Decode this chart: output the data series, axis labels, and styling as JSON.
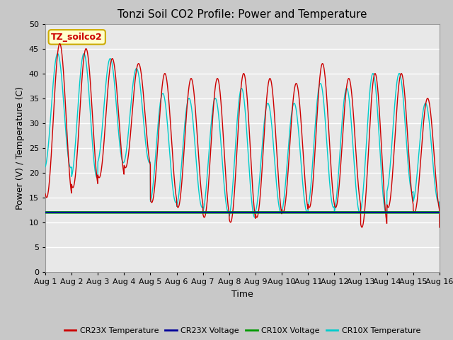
{
  "title": "Tonzi Soil CO2 Profile: Power and Temperature",
  "xlabel": "Time",
  "ylabel": "Power (V) / Temperature (C)",
  "ylim": [
    0,
    50
  ],
  "yticks": [
    0,
    5,
    10,
    15,
    20,
    25,
    30,
    35,
    40,
    45,
    50
  ],
  "plot_bg_color": "#e8e8e8",
  "fig_bg_color": "#c8c8c8",
  "cr23x_temp_color": "#cc0000",
  "cr23x_volt_color": "#000099",
  "cr10x_volt_color": "#009900",
  "cr10x_temp_color": "#00cccc",
  "voltage_value": 12.0,
  "legend_box_color": "#ffffcc",
  "legend_box_edge": "#ccaa00",
  "annotation_text": "TZ_soilco2",
  "annotation_color": "#cc0000",
  "title_fontsize": 11,
  "ylabel_fontsize": 9,
  "xlabel_fontsize": 9,
  "tick_fontsize": 8,
  "peaks": [
    46,
    45,
    43,
    42,
    40,
    39,
    39,
    40,
    39,
    38,
    42,
    39,
    40,
    40,
    35
  ],
  "troughs_cr23x": [
    15,
    17,
    19,
    21,
    14,
    13,
    11,
    10,
    11,
    12,
    13,
    13,
    9,
    13,
    12
  ],
  "troughs_cr10x": [
    21,
    19,
    22,
    22,
    14,
    13,
    12,
    11,
    12,
    12,
    13,
    12,
    12,
    16,
    14
  ],
  "peaks_cr10x": [
    44,
    44,
    43,
    41,
    36,
    35,
    35,
    37,
    34,
    34,
    38,
    37,
    40,
    40,
    34
  ]
}
